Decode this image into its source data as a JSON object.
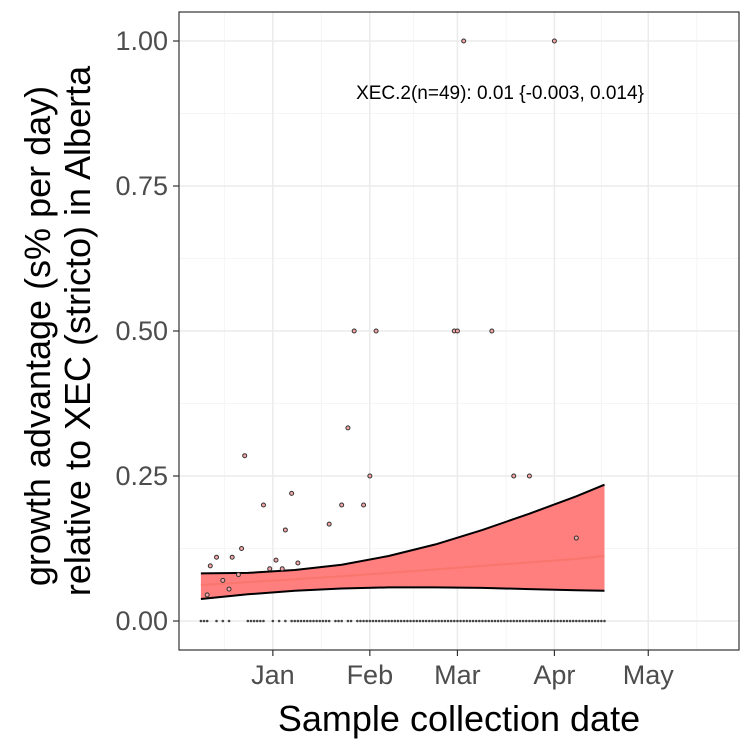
{
  "chart_data": {
    "type": "scatter",
    "xlabel": "Sample collection date",
    "ylabel": [
      "growth advantage (s% per day)",
      "relative to XEC (stricto) in Alberta"
    ],
    "annotation": "XEC.2(n=49): 0.01 {-0.003, 0.014}",
    "xlim": [
      "2024-12-02",
      "2025-05-30"
    ],
    "ylim": [
      -0.05,
      1.05
    ],
    "x_ticks": [
      {
        "date": "2025-01-01",
        "label": "Jan"
      },
      {
        "date": "2025-02-01",
        "label": "Feb"
      },
      {
        "date": "2025-03-01",
        "label": "Mar"
      },
      {
        "date": "2025-04-01",
        "label": "Apr"
      },
      {
        "date": "2025-05-01",
        "label": "May"
      }
    ],
    "y_ticks": [
      {
        "value": 0.0,
        "label": "0.00"
      },
      {
        "value": 0.25,
        "label": "0.25"
      },
      {
        "value": 0.5,
        "label": "0.50"
      },
      {
        "value": 0.75,
        "label": "0.75"
      },
      {
        "value": 1.0,
        "label": "1.00"
      }
    ],
    "grid": true,
    "colors": {
      "fit_line": "#f8766d",
      "ribbon_fill": "#ff7f7f",
      "ribbon_edge": "#000000",
      "point_fill": "#f4a6a6",
      "point_edge": "#333333",
      "grid_major": "#ebebeb",
      "grid_minor": "#f5f5f5"
    },
    "points": [
      {
        "x": "2024-12-11",
        "y": 0.045
      },
      {
        "x": "2024-12-12",
        "y": 0.095
      },
      {
        "x": "2024-12-14",
        "y": 0.11
      },
      {
        "x": "2024-12-16",
        "y": 0.07
      },
      {
        "x": "2024-12-18",
        "y": 0.055
      },
      {
        "x": "2024-12-19",
        "y": 0.11
      },
      {
        "x": "2024-12-21",
        "y": 0.08
      },
      {
        "x": "2024-12-22",
        "y": 0.125
      },
      {
        "x": "2024-12-23",
        "y": 0.285
      },
      {
        "x": "2024-12-29",
        "y": 0.2
      },
      {
        "x": "2024-12-31",
        "y": 0.09
      },
      {
        "x": "2025-01-02",
        "y": 0.105
      },
      {
        "x": "2025-01-04",
        "y": 0.09
      },
      {
        "x": "2025-01-05",
        "y": 0.157
      },
      {
        "x": "2025-01-07",
        "y": 0.22
      },
      {
        "x": "2025-01-09",
        "y": 0.1
      },
      {
        "x": "2025-01-19",
        "y": 0.167
      },
      {
        "x": "2025-01-23",
        "y": 0.2
      },
      {
        "x": "2025-01-25",
        "y": 0.333
      },
      {
        "x": "2025-01-27",
        "y": 0.5
      },
      {
        "x": "2025-01-30",
        "y": 0.2
      },
      {
        "x": "2025-02-01",
        "y": 0.25
      },
      {
        "x": "2025-02-03",
        "y": 0.5
      },
      {
        "x": "2025-02-28",
        "y": 0.5
      },
      {
        "x": "2025-03-01",
        "y": 0.5
      },
      {
        "x": "2025-03-03",
        "y": 1.0
      },
      {
        "x": "2025-03-12",
        "y": 0.5
      },
      {
        "x": "2025-03-19",
        "y": 0.25
      },
      {
        "x": "2025-03-24",
        "y": 0.25
      },
      {
        "x": "2025-04-01",
        "y": 1.0
      },
      {
        "x": "2025-04-08",
        "y": 0.143
      }
    ],
    "zero_days": [
      "2024-12-09",
      "2024-12-10",
      "2024-12-11",
      "2024-12-14",
      "2024-12-16",
      "2024-12-18",
      "2024-12-24",
      "2024-12-25",
      "2024-12-26",
      "2024-12-27",
      "2024-12-28",
      "2024-12-29",
      "2025-01-01",
      "2025-01-03",
      "2025-01-05",
      "2025-01-07",
      "2025-01-08",
      "2025-01-09",
      "2025-01-10",
      "2025-01-11",
      "2025-01-12",
      "2025-01-13",
      "2025-01-14",
      "2025-01-15",
      "2025-01-16",
      "2025-01-17",
      "2025-01-18",
      "2025-01-19",
      "2025-01-21",
      "2025-01-22",
      "2025-01-23",
      "2025-01-25",
      "2025-01-26",
      "2025-01-28",
      "2025-01-29",
      "2025-01-30",
      "2025-01-31",
      "2025-02-01",
      "2025-02-02",
      "2025-02-03",
      "2025-02-04",
      "2025-02-05",
      "2025-02-06",
      "2025-02-07",
      "2025-02-08",
      "2025-02-09",
      "2025-02-10",
      "2025-02-11",
      "2025-02-12",
      "2025-02-13",
      "2025-02-14",
      "2025-02-15",
      "2025-02-16",
      "2025-02-17",
      "2025-02-18",
      "2025-02-19",
      "2025-02-20",
      "2025-02-21",
      "2025-02-22",
      "2025-02-23",
      "2025-02-24",
      "2025-02-25",
      "2025-02-26",
      "2025-02-27",
      "2025-02-28",
      "2025-03-01",
      "2025-03-02",
      "2025-03-03",
      "2025-03-04",
      "2025-03-05",
      "2025-03-06",
      "2025-03-07",
      "2025-03-08",
      "2025-03-09",
      "2025-03-10",
      "2025-03-11",
      "2025-03-12",
      "2025-03-13",
      "2025-03-14",
      "2025-03-15",
      "2025-03-16",
      "2025-03-17",
      "2025-03-18",
      "2025-03-19",
      "2025-03-20",
      "2025-03-21",
      "2025-03-22",
      "2025-03-23",
      "2025-03-24",
      "2025-03-25",
      "2025-03-26",
      "2025-03-27",
      "2025-03-28",
      "2025-03-29",
      "2025-03-30",
      "2025-03-31",
      "2025-04-01",
      "2025-04-02",
      "2025-04-03",
      "2025-04-04",
      "2025-04-05",
      "2025-04-06",
      "2025-04-07",
      "2025-04-08",
      "2025-04-09",
      "2025-04-10",
      "2025-04-11",
      "2025-04-12",
      "2025-04-13",
      "2025-04-14",
      "2025-04-15",
      "2025-04-16",
      "2025-04-17"
    ],
    "fit": {
      "x": [
        "2024-12-09",
        "2024-12-24",
        "2025-01-08",
        "2025-01-23",
        "2025-02-07",
        "2025-02-22",
        "2025-03-09",
        "2025-03-24",
        "2025-04-08",
        "2025-04-17"
      ],
      "mid": [
        0.062,
        0.067,
        0.072,
        0.077,
        0.083,
        0.089,
        0.095,
        0.101,
        0.107,
        0.112
      ],
      "low": [
        0.038,
        0.046,
        0.052,
        0.056,
        0.058,
        0.058,
        0.057,
        0.055,
        0.053,
        0.052
      ],
      "high": [
        0.082,
        0.083,
        0.088,
        0.097,
        0.112,
        0.132,
        0.157,
        0.185,
        0.215,
        0.235
      ]
    }
  }
}
